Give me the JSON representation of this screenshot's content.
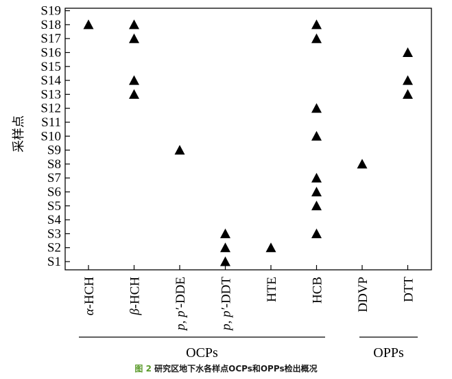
{
  "chart_data": {
    "type": "scatter",
    "ylabel": "采样点",
    "categories": [
      {
        "label": "α-HCH",
        "segments": [
          {
            "text": "α",
            "italic": true
          },
          {
            "text": "-HCH",
            "italic": false
          }
        ]
      },
      {
        "label": "β-HCH",
        "segments": [
          {
            "text": "β",
            "italic": true
          },
          {
            "text": "-HCH",
            "italic": false
          }
        ]
      },
      {
        "label": "p, p′-DDE",
        "segments": [
          {
            "text": "p, p′",
            "italic": true
          },
          {
            "text": "-DDE",
            "italic": false
          }
        ]
      },
      {
        "label": "p, p′-DDT",
        "segments": [
          {
            "text": "p, p′",
            "italic": true
          },
          {
            "text": "-DDT",
            "italic": false
          }
        ]
      },
      {
        "label": "HTE",
        "segments": [
          {
            "text": "HTE",
            "italic": false
          }
        ]
      },
      {
        "label": "HCB",
        "segments": [
          {
            "text": "HCB",
            "italic": false
          }
        ]
      },
      {
        "label": "DDVP",
        "segments": [
          {
            "text": "DDVP",
            "italic": false
          }
        ]
      },
      {
        "label": "DTT",
        "segments": [
          {
            "text": "DTT",
            "italic": false
          }
        ]
      }
    ],
    "yticks": [
      "S1",
      "S2",
      "S3",
      "S4",
      "S5",
      "S6",
      "S7",
      "S8",
      "S9",
      "S10",
      "S11",
      "S12",
      "S13",
      "S14",
      "S15",
      "S16",
      "S17",
      "S18",
      "S19"
    ],
    "series": [
      {
        "category": "α-HCH",
        "points": [
          18
        ]
      },
      {
        "category": "β-HCH",
        "points": [
          18,
          17,
          14,
          13
        ]
      },
      {
        "category": "p, p′-DDE",
        "points": [
          9
        ]
      },
      {
        "category": "p, p′-DDT",
        "points": [
          3,
          2,
          1
        ]
      },
      {
        "category": "HTE",
        "points": [
          2
        ]
      },
      {
        "category": "HCB",
        "points": [
          18,
          17,
          12,
          10,
          7,
          6,
          5,
          3
        ]
      },
      {
        "category": "DDVP",
        "points": [
          8
        ]
      },
      {
        "category": "DTT",
        "points": [
          16,
          14,
          13
        ]
      }
    ],
    "groups": [
      {
        "label": "OCPs",
        "from": 0,
        "to": 5
      },
      {
        "label": "OPPs",
        "from": 6,
        "to": 7
      }
    ],
    "marker": "triangle",
    "marker_color": "#000000"
  },
  "caption": {
    "figure_label": "图 2",
    "text": "研究区地下水各样点OCPs和OPPs检出概况"
  }
}
